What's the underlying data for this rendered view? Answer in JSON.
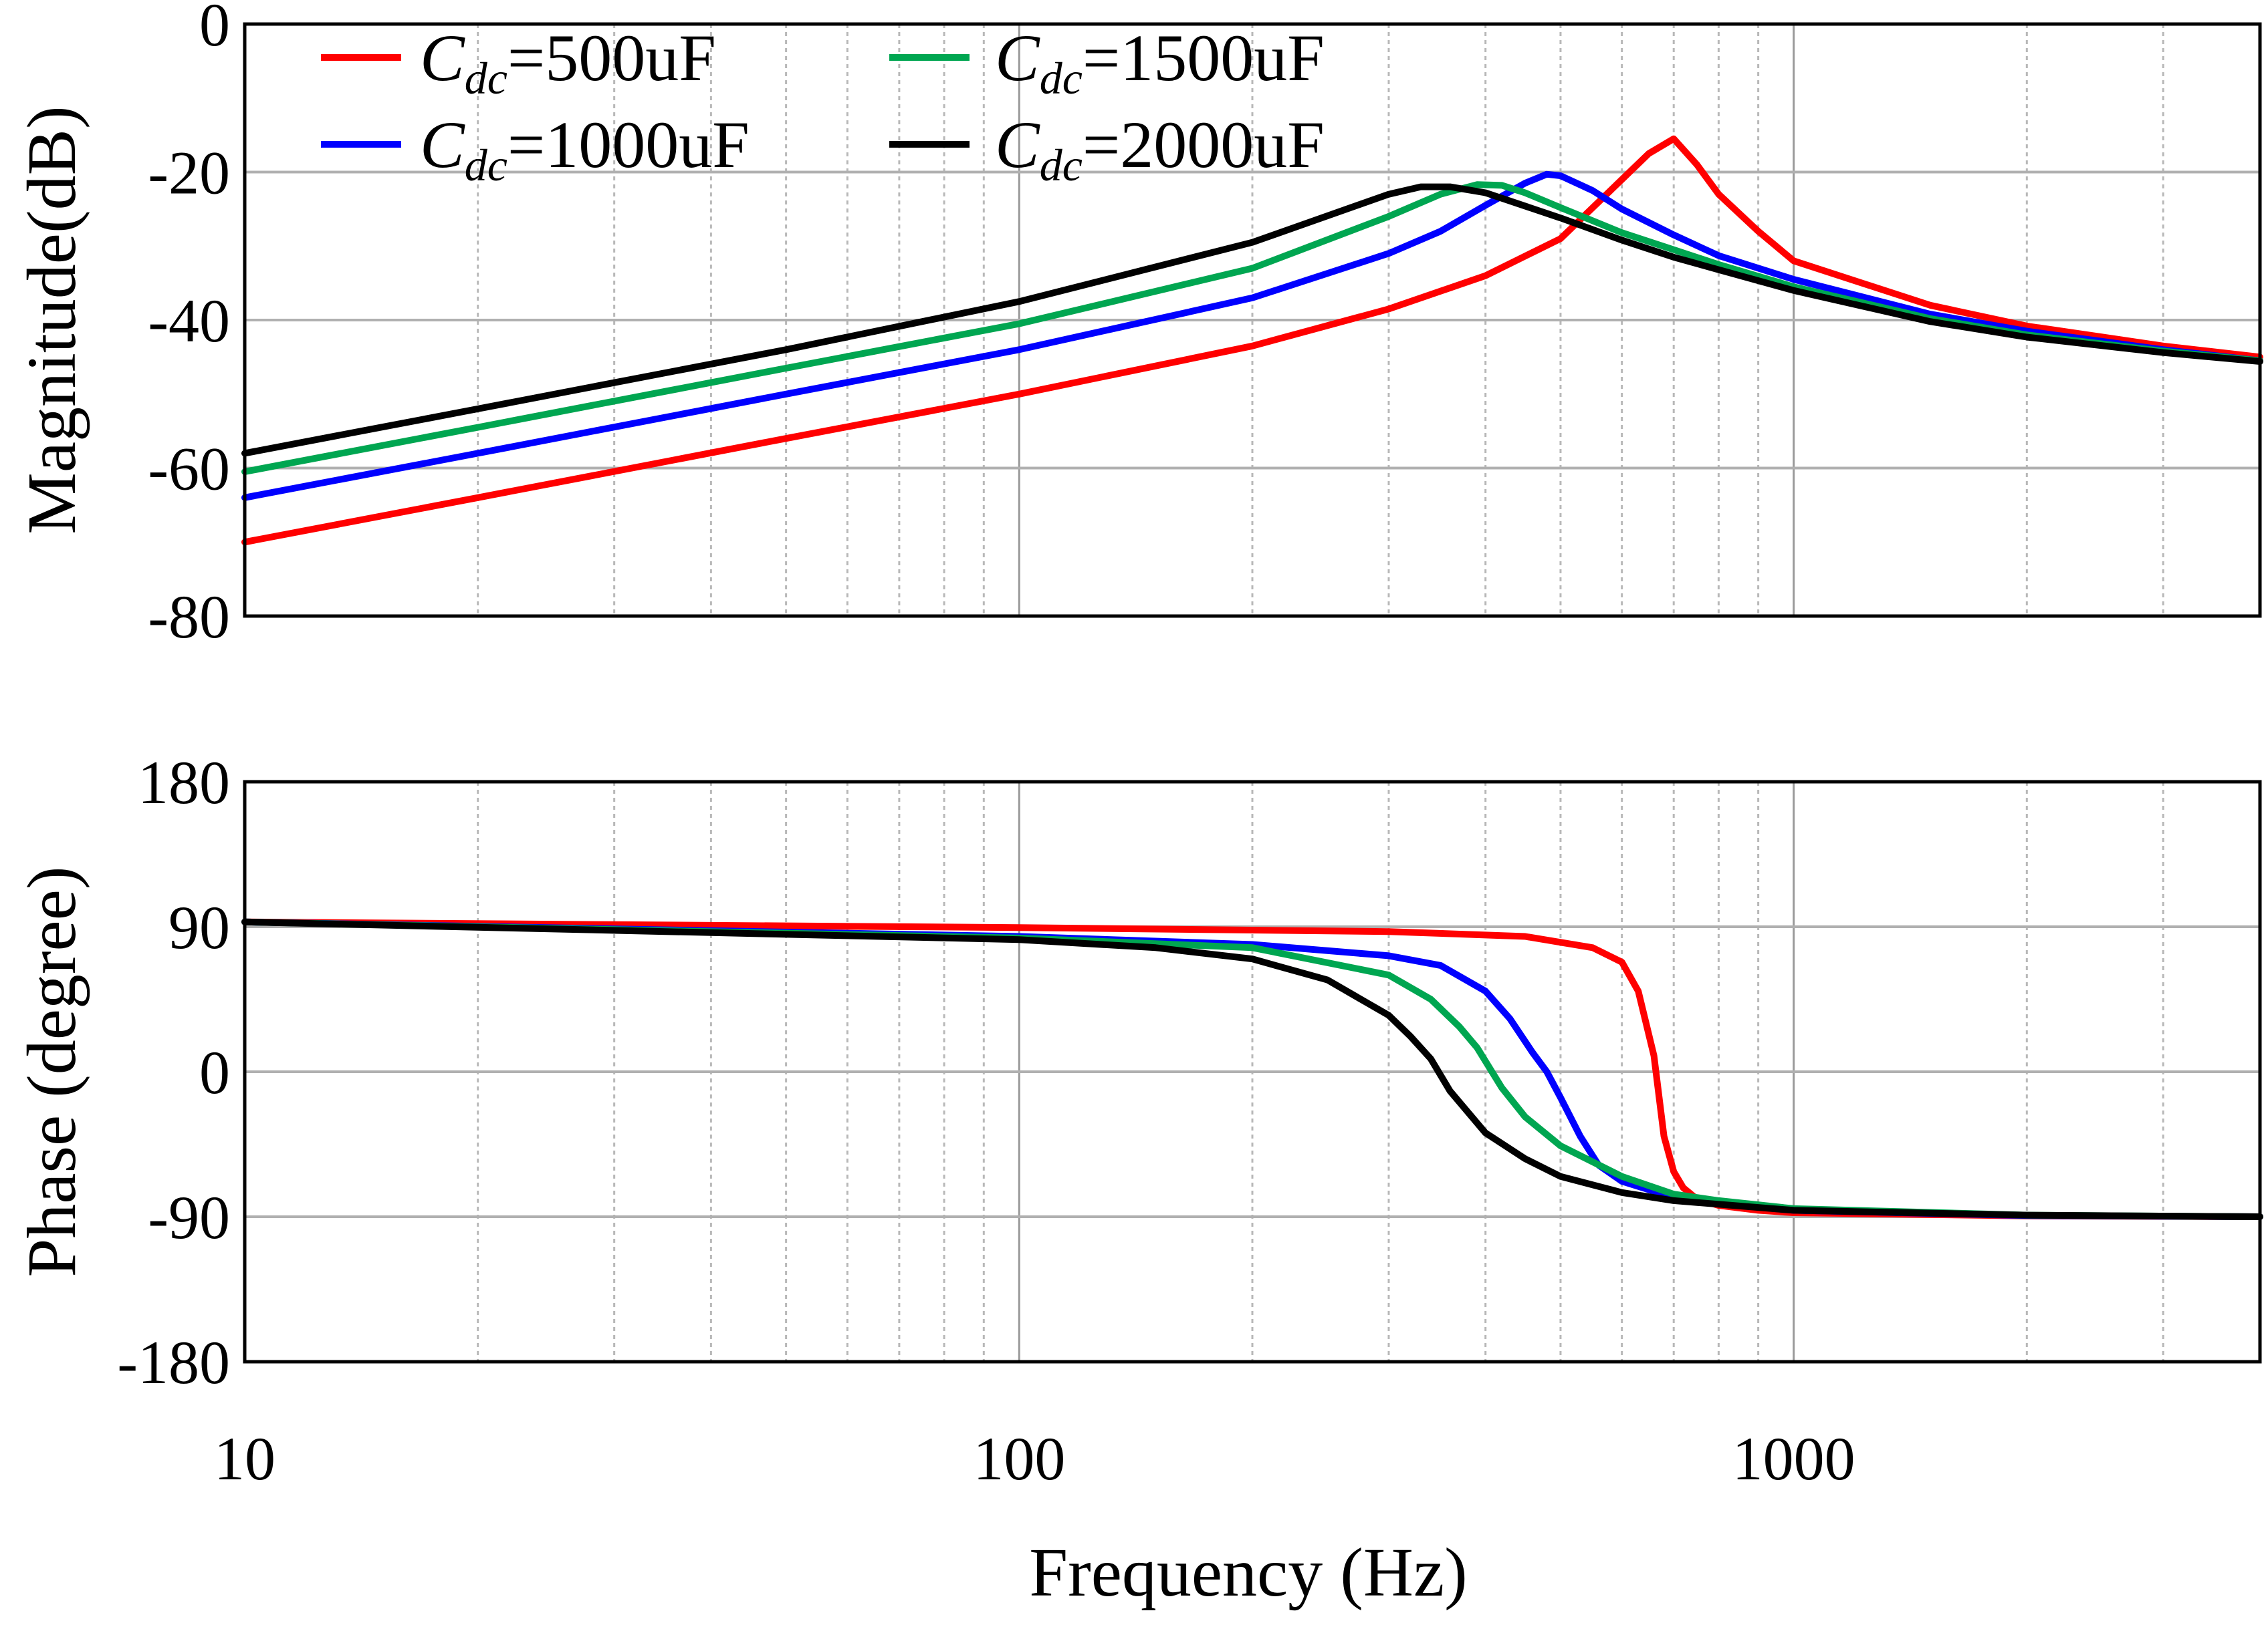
{
  "chart_data": [
    {
      "type": "line",
      "id": "magnitude",
      "title": "",
      "xlabel": "",
      "ylabel": "Magnitude(dB)",
      "xscale": "log",
      "xlim": [
        10,
        4000
      ],
      "ylim": [
        -80,
        0
      ],
      "yticks": [
        "0",
        "-20",
        "-40",
        "-60",
        "-80"
      ],
      "ytick_values": [
        0,
        -20,
        -40,
        -60,
        -80
      ],
      "grid": true,
      "legend_position": "top-left",
      "series": [
        {
          "name": "500uF",
          "legend_prefix": "C",
          "legend_sub": "dc",
          "legend_suffix": "=500uF",
          "color": "#ff0000",
          "x": [
            10,
            20,
            50,
            100,
            200,
            300,
            400,
            500,
            600,
            650,
            700,
            750,
            800,
            900,
            1000,
            1500,
            2000,
            3000,
            4000
          ],
          "y": [
            -70,
            -64,
            -56,
            -50,
            -43.5,
            -38.5,
            -34,
            -29,
            -21,
            -17.5,
            -15.5,
            -19,
            -23,
            -28,
            -32,
            -38,
            -40.8,
            -43.5,
            -45
          ]
        },
        {
          "name": "1000uF",
          "legend_prefix": "C",
          "legend_sub": "dc",
          "legend_suffix": "=1000uF",
          "color": "#0000ff",
          "x": [
            10,
            20,
            50,
            100,
            200,
            300,
            350,
            400,
            450,
            480,
            500,
            550,
            600,
            700,
            800,
            1000,
            1500,
            2000,
            3000,
            4000
          ],
          "y": [
            -64,
            -58,
            -50,
            -44,
            -37,
            -31,
            -28,
            -24.5,
            -21.5,
            -20.3,
            -20.5,
            -22.5,
            -25,
            -28.5,
            -31.3,
            -34.5,
            -39.2,
            -41.5,
            -44,
            -45.5
          ]
        },
        {
          "name": "1500uF",
          "legend_prefix": "C",
          "legend_sub": "dc",
          "legend_suffix": "=1500uF",
          "color": "#00a651",
          "x": [
            10,
            20,
            50,
            100,
            200,
            300,
            350,
            390,
            420,
            450,
            500,
            600,
            700,
            800,
            1000,
            1500,
            2000,
            3000,
            4000
          ],
          "y": [
            -60.5,
            -54.5,
            -46.5,
            -40.5,
            -33,
            -26,
            -23,
            -21.7,
            -21.8,
            -22.8,
            -24.8,
            -28.2,
            -30.5,
            -32.5,
            -35.5,
            -39.8,
            -42,
            -44.2,
            -45.5
          ]
        },
        {
          "name": "2000uF",
          "legend_prefix": "C",
          "legend_sub": "dc",
          "legend_suffix": "=2000uF",
          "color": "#000000",
          "x": [
            10,
            20,
            50,
            100,
            200,
            300,
            330,
            360,
            400,
            500,
            600,
            700,
            800,
            1000,
            1500,
            2000,
            3000,
            4000
          ],
          "y": [
            -58,
            -52,
            -44,
            -37.5,
            -29.5,
            -23,
            -22,
            -22,
            -22.8,
            -26.2,
            -29.2,
            -31.5,
            -33.2,
            -36,
            -40.2,
            -42.3,
            -44.4,
            -45.6
          ]
        }
      ]
    },
    {
      "type": "line",
      "id": "phase",
      "title": "",
      "xlabel": "Frequency (Hz)",
      "ylabel": "Phase (degree)",
      "xscale": "log",
      "xlim": [
        10,
        4000
      ],
      "ylim": [
        -180,
        180
      ],
      "yticks": [
        "180",
        "90",
        "0",
        "-90",
        "-180"
      ],
      "ytick_values": [
        180,
        90,
        0,
        -90,
        -180
      ],
      "xticks": [
        "10",
        "100",
        "1000"
      ],
      "xtick_values": [
        10,
        100,
        1000
      ],
      "grid": true,
      "series": [
        {
          "name": "500uF",
          "color": "#ff0000",
          "x": [
            10,
            100,
            300,
            450,
            550,
            600,
            630,
            660,
            680,
            700,
            720,
            750,
            800,
            900,
            1000,
            2000,
            4000
          ],
          "y": [
            93,
            89.5,
            87,
            84,
            77,
            68,
            50,
            10,
            -40,
            -62,
            -72,
            -79,
            -83,
            -86,
            -87.5,
            -89.5,
            -90
          ]
        },
        {
          "name": "1000uF",
          "color": "#0000ff",
          "x": [
            10,
            100,
            200,
            300,
            350,
            400,
            430,
            460,
            480,
            500,
            530,
            560,
            600,
            700,
            800,
            1000,
            2000,
            4000
          ],
          "y": [
            93,
            84,
            79,
            72,
            66,
            50,
            33,
            12,
            0,
            -16,
            -40,
            -58,
            -68,
            -78,
            -82,
            -86,
            -89.3,
            -90
          ]
        },
        {
          "name": "1500uF",
          "color": "#00a651",
          "x": [
            10,
            100,
            200,
            300,
            340,
            370,
            390,
            420,
            450,
            500,
            600,
            700,
            800,
            1000,
            2000,
            4000
          ],
          "y": [
            93,
            83,
            77,
            60,
            45,
            28,
            15,
            -10,
            -28,
            -46,
            -65,
            -76,
            -80,
            -85,
            -89,
            -90
          ]
        },
        {
          "name": "2000uF",
          "color": "#000000",
          "x": [
            10,
            100,
            150,
            200,
            250,
            300,
            320,
            340,
            360,
            400,
            450,
            500,
            600,
            700,
            1000,
            2000,
            4000
          ],
          "y": [
            93,
            82,
            77,
            70,
            57,
            35,
            22,
            8,
            -12,
            -38,
            -54,
            -65,
            -75,
            -80,
            -86,
            -89,
            -90
          ]
        }
      ]
    }
  ]
}
